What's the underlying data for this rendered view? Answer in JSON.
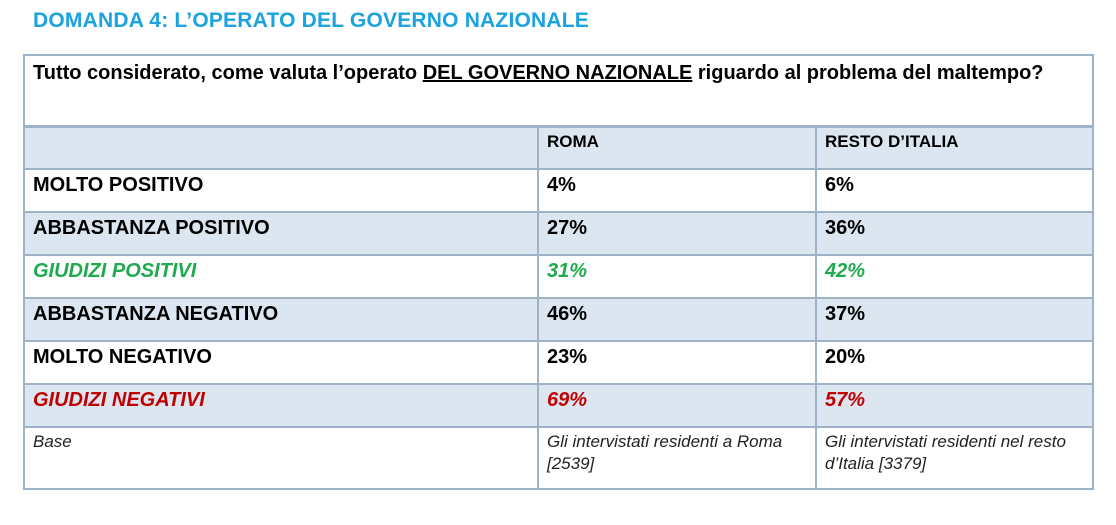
{
  "title": "DOMANDA 4: L’OPERATO DEL GOVERNO NAZIONALE",
  "question": {
    "before": "Tutto considerato, come valuta l’operato ",
    "emphasis": "DEL GOVERNO NAZIONALE",
    "after": " riguardo al problema del maltempo?"
  },
  "columns": [
    "",
    "ROMA",
    "RESTO D’ITALIA"
  ],
  "rows": [
    {
      "label": "MOLTO POSITIVO",
      "roma": "4%",
      "resto": "6%"
    },
    {
      "label": "ABBASTANZA POSITIVO",
      "roma": "27%",
      "resto": "36%"
    },
    {
      "label": "GIUDIZI POSITIVI",
      "roma": "31%",
      "resto": "42%"
    },
    {
      "label": "ABBASTANZA NEGATIVO",
      "roma": "46%",
      "resto": "37%"
    },
    {
      "label": "MOLTO NEGATIVO",
      "roma": "23%",
      "resto": "20%"
    },
    {
      "label": "GIUDIZI NEGATIVI",
      "roma": "69%",
      "resto": "57%"
    }
  ],
  "base": {
    "label": "Base",
    "roma": "Gli intervistati residenti a Roma [2539]",
    "resto": "Gli intervistati residenti nel resto d’Italia [3379]"
  },
  "colors": {
    "title": "#1aa3e0",
    "positive": "#1faa4f",
    "negative": "#c00000",
    "header_bg": "#dce6f1"
  }
}
